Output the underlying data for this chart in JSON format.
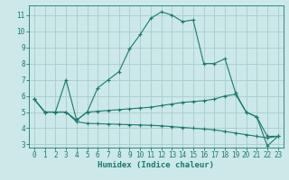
{
  "xlabel": "Humidex (Indice chaleur)",
  "xlim": [
    -0.5,
    23.5
  ],
  "ylim": [
    2.8,
    11.6
  ],
  "yticks": [
    3,
    4,
    5,
    6,
    7,
    8,
    9,
    10,
    11
  ],
  "xticks": [
    0,
    1,
    2,
    3,
    4,
    5,
    6,
    7,
    8,
    9,
    10,
    11,
    12,
    13,
    14,
    15,
    16,
    17,
    18,
    19,
    20,
    21,
    22,
    23
  ],
  "bg_color": "#cce8e8",
  "grid_color": "#aacccc",
  "line_color": "#1a7a6e",
  "lines": [
    [
      5.8,
      5.0,
      5.0,
      7.0,
      4.5,
      5.0,
      6.5,
      7.0,
      7.5,
      8.9,
      9.8,
      10.8,
      11.2,
      11.0,
      10.6,
      10.7,
      8.0,
      8.0,
      8.3,
      6.2,
      5.0,
      4.7,
      2.9,
      3.5
    ],
    [
      5.8,
      5.0,
      5.0,
      5.0,
      4.5,
      5.0,
      5.05,
      5.1,
      5.15,
      5.2,
      5.25,
      5.3,
      5.4,
      5.5,
      5.6,
      5.65,
      5.7,
      5.8,
      6.0,
      6.1,
      5.0,
      4.7,
      3.5,
      3.5
    ],
    [
      5.8,
      5.0,
      5.0,
      5.0,
      4.4,
      4.3,
      4.28,
      4.26,
      4.24,
      4.22,
      4.2,
      4.18,
      4.15,
      4.1,
      4.05,
      4.0,
      3.95,
      3.9,
      3.8,
      3.7,
      3.6,
      3.5,
      3.4,
      3.5
    ]
  ],
  "marker": "+",
  "markersize": 3.5,
  "linewidth": 0.8
}
